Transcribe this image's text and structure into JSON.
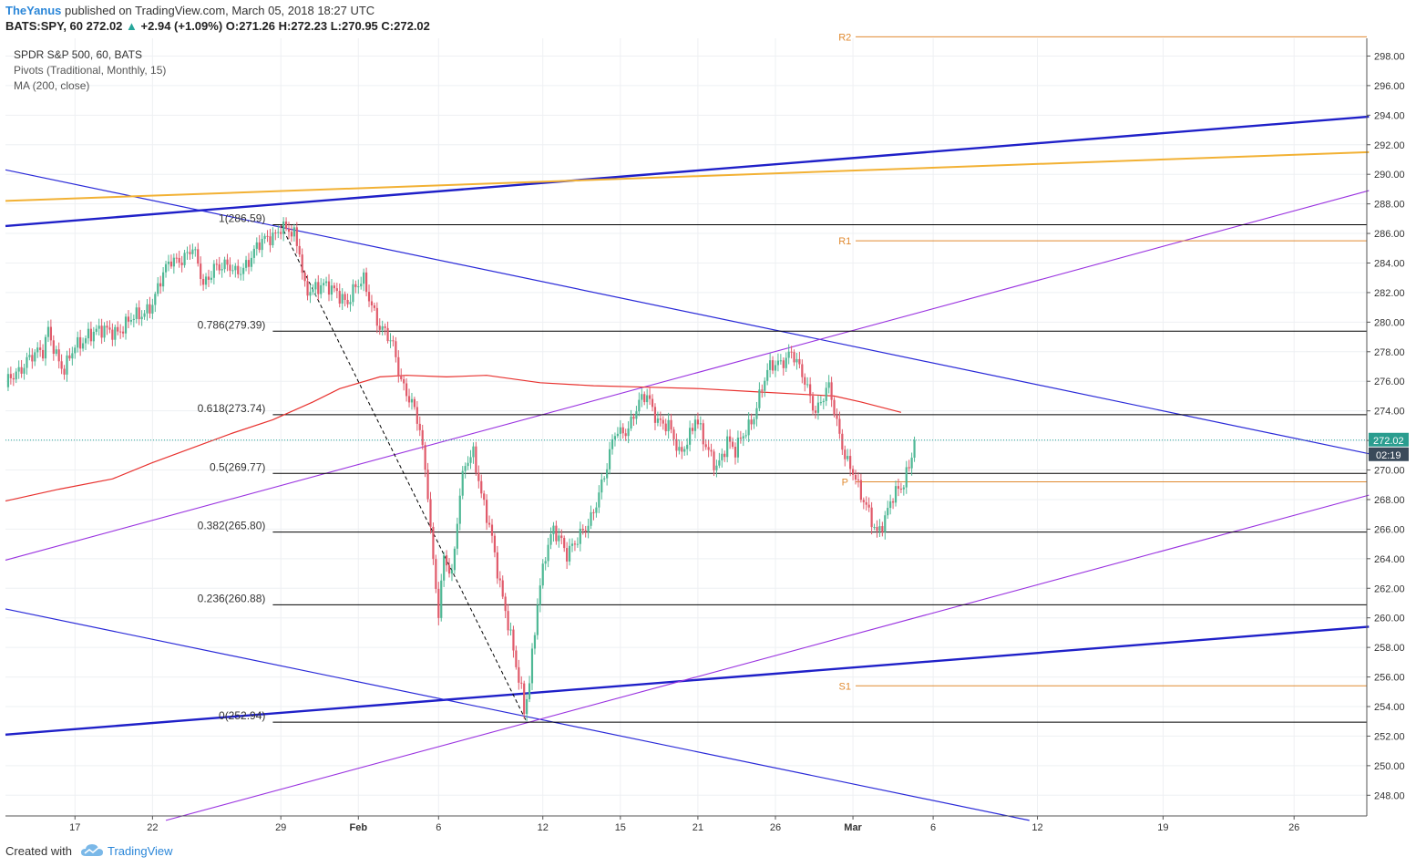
{
  "header": {
    "author": "TheYanus",
    "published": "published on TradingView.com, March 05, 2018 18:27 UTC",
    "symbol": "BATS:SPY, 60",
    "last": "272.02",
    "change": "+2.94 (+1.09%)",
    "o_label": "O:",
    "o": "271.26",
    "h_label": "H:",
    "h": "272.23",
    "l_label": "L:",
    "l": "270.95",
    "c_label": "C:",
    "c": "272.02"
  },
  "legend": {
    "series": "SPDR S&P 500, 60, BATS",
    "pivots": "Pivots (Traditional, Monthly, 15)",
    "ma": "MA (200, close)"
  },
  "footer": {
    "created": "Created with",
    "brand": "TradingView"
  },
  "colors": {
    "up": "#4fb895",
    "down": "#e05a6a",
    "ma": "#e8322f",
    "trend_dark": "#1f20c8",
    "trend_thin": "#2a2ad8",
    "trend_orange": "#f2b134",
    "trend_purple": "#9a33e0",
    "pivot": "#e08a30",
    "fib": "#000000"
  },
  "chart_data": {
    "type": "candlestick",
    "y_min": 246.6,
    "y_max": 299.2,
    "y_ticks": [
      "248.00",
      "250.00",
      "252.00",
      "254.00",
      "256.00",
      "258.00",
      "260.00",
      "262.00",
      "264.00",
      "266.00",
      "268.00",
      "270.00",
      "272.00",
      "274.00",
      "276.00",
      "278.00",
      "280.00",
      "282.00",
      "284.00",
      "286.00",
      "288.00",
      "290.00",
      "292.00",
      "294.00",
      "296.00",
      "298.00"
    ],
    "x_ticks": [
      {
        "label": "17",
        "bar": 26
      },
      {
        "label": "22",
        "bar": 55
      },
      {
        "label": "29",
        "bar": 103
      },
      {
        "label": "Feb",
        "bar": 132
      },
      {
        "label": "6",
        "bar": 162
      },
      {
        "label": "12",
        "bar": 201
      },
      {
        "label": "15",
        "bar": 230
      },
      {
        "label": "21",
        "bar": 259
      },
      {
        "label": "26",
        "bar": 288
      },
      {
        "label": "Mar",
        "bar": 317
      },
      {
        "label": "6",
        "bar": 347
      },
      {
        "label": "12",
        "bar": 386
      },
      {
        "label": "19",
        "bar": 433
      },
      {
        "label": "26",
        "bar": 482
      }
    ],
    "bar_count": 510,
    "last_price": "272.02",
    "countdown": "02:19",
    "fib_levels": [
      {
        "label": "1(286.59)",
        "value": 286.59
      },
      {
        "label": "0.786(279.39)",
        "value": 279.39
      },
      {
        "label": "0.618(273.74)",
        "value": 273.74
      },
      {
        "label": "0.5(269.77)",
        "value": 269.77
      },
      {
        "label": "0.382(265.80)",
        "value": 265.8
      },
      {
        "label": "0.236(260.88)",
        "value": 260.88
      },
      {
        "label": "0(252.94)",
        "value": 252.94
      }
    ],
    "pivots": [
      {
        "label": "R2",
        "value": 299.3
      },
      {
        "label": "R1",
        "value": 285.5
      },
      {
        "label": "P",
        "value": 269.2
      },
      {
        "label": "S1",
        "value": 255.4
      }
    ],
    "anchors": [
      [
        0,
        275.6
      ],
      [
        8,
        277.6
      ],
      [
        14,
        277.8
      ],
      [
        16,
        279.6
      ],
      [
        20,
        277.5
      ],
      [
        22,
        276.6
      ],
      [
        26,
        278.2
      ],
      [
        31,
        279.4
      ],
      [
        36,
        279.2
      ],
      [
        42,
        279.6
      ],
      [
        50,
        280.3
      ],
      [
        55,
        281.5
      ],
      [
        58,
        282.7
      ],
      [
        62,
        284.1
      ],
      [
        70,
        284.9
      ],
      [
        74,
        282.4
      ],
      [
        78,
        284.0
      ],
      [
        86,
        283.3
      ],
      [
        93,
        284.7
      ],
      [
        100,
        286.0
      ],
      [
        103,
        286.59
      ],
      [
        108,
        285.6
      ],
      [
        110,
        284.7
      ],
      [
        112,
        282.5
      ],
      [
        118,
        282.2
      ],
      [
        124,
        282.3
      ],
      [
        128,
        281.3
      ],
      [
        134,
        282.9
      ],
      [
        137,
        281.4
      ],
      [
        140,
        279.6
      ],
      [
        145,
        278.3
      ],
      [
        148,
        276.3
      ],
      [
        152,
        274.5
      ],
      [
        155,
        272.5
      ],
      [
        158,
        268.5
      ],
      [
        160,
        264.0
      ],
      [
        162,
        260.6
      ],
      [
        164,
        264.0
      ],
      [
        167,
        262.5
      ],
      [
        170,
        268.5
      ],
      [
        172,
        270.8
      ],
      [
        175,
        271.2
      ],
      [
        178,
        268.0
      ],
      [
        182,
        265.5
      ],
      [
        184,
        263.5
      ],
      [
        187,
        260.5
      ],
      [
        191,
        256.5
      ],
      [
        193,
        255.0
      ],
      [
        194,
        253.8
      ],
      [
        196,
        256.0
      ],
      [
        199,
        261.0
      ],
      [
        202,
        264.0
      ],
      [
        205,
        266.0
      ],
      [
        208,
        265.5
      ],
      [
        210,
        264.4
      ],
      [
        214,
        265.0
      ],
      [
        218,
        266.5
      ],
      [
        222,
        268.5
      ],
      [
        225,
        270.0
      ],
      [
        228,
        272.5
      ],
      [
        233,
        273.0
      ],
      [
        237,
        274.3
      ],
      [
        240,
        275.0
      ],
      [
        244,
        273.6
      ],
      [
        248,
        272.8
      ],
      [
        252,
        271.0
      ],
      [
        256,
        272.6
      ],
      [
        258,
        273.6
      ],
      [
        262,
        271.3
      ],
      [
        266,
        270.4
      ],
      [
        270,
        272.0
      ],
      [
        273,
        271.0
      ],
      [
        276,
        272.4
      ],
      [
        280,
        273.9
      ],
      [
        283,
        275.5
      ],
      [
        286,
        276.8
      ],
      [
        290,
        277.5
      ],
      [
        294,
        278.0
      ],
      [
        296,
        277.0
      ],
      [
        300,
        275.5
      ],
      [
        303,
        274.2
      ],
      [
        306,
        275.0
      ],
      [
        308,
        275.4
      ],
      [
        311,
        273.0
      ],
      [
        314,
        271.2
      ],
      [
        317,
        270.0
      ],
      [
        320,
        268.0
      ],
      [
        323,
        267.0
      ],
      [
        326,
        266.0
      ],
      [
        329,
        266.8
      ],
      [
        332,
        268.0
      ],
      [
        335,
        268.7
      ],
      [
        338,
        270.5
      ],
      [
        340,
        272.02
      ]
    ],
    "ma_200": [
      [
        0,
        267.9
      ],
      [
        20,
        268.7
      ],
      [
        40,
        269.4
      ],
      [
        55,
        270.5
      ],
      [
        70,
        271.5
      ],
      [
        85,
        272.5
      ],
      [
        100,
        273.4
      ],
      [
        115,
        274.6
      ],
      [
        125,
        275.5
      ],
      [
        140,
        276.3
      ],
      [
        150,
        276.4
      ],
      [
        165,
        276.3
      ],
      [
        180,
        276.4
      ],
      [
        200,
        275.9
      ],
      [
        220,
        275.7
      ],
      [
        240,
        275.6
      ],
      [
        260,
        275.5
      ],
      [
        280,
        275.3
      ],
      [
        300,
        275.1
      ],
      [
        310,
        275.0
      ],
      [
        320,
        274.6
      ],
      [
        335,
        273.9
      ]
    ],
    "trendlines": [
      {
        "style": "dark",
        "from": [
          0,
          286.5
        ],
        "to": [
          510,
          293.9
        ]
      },
      {
        "style": "dark",
        "from": [
          0,
          252.1
        ],
        "to": [
          510,
          259.4
        ]
      },
      {
        "style": "thin",
        "from": [
          0,
          290.3
        ],
        "to": [
          510,
          271.1
        ]
      },
      {
        "style": "thin",
        "from": [
          0,
          260.6
        ],
        "to": [
          383,
          246.3
        ]
      },
      {
        "style": "orange",
        "from": [
          0,
          288.2
        ],
        "to": [
          510,
          291.5
        ]
      },
      {
        "style": "purple",
        "from": [
          0,
          263.9
        ],
        "to": [
          510,
          288.9
        ]
      },
      {
        "style": "purple",
        "from": [
          60,
          246.3
        ],
        "to": [
          510,
          268.3
        ]
      }
    ],
    "fib_swing": {
      "from": [
        103,
        286.59
      ],
      "to": [
        195,
        252.94
      ]
    }
  }
}
